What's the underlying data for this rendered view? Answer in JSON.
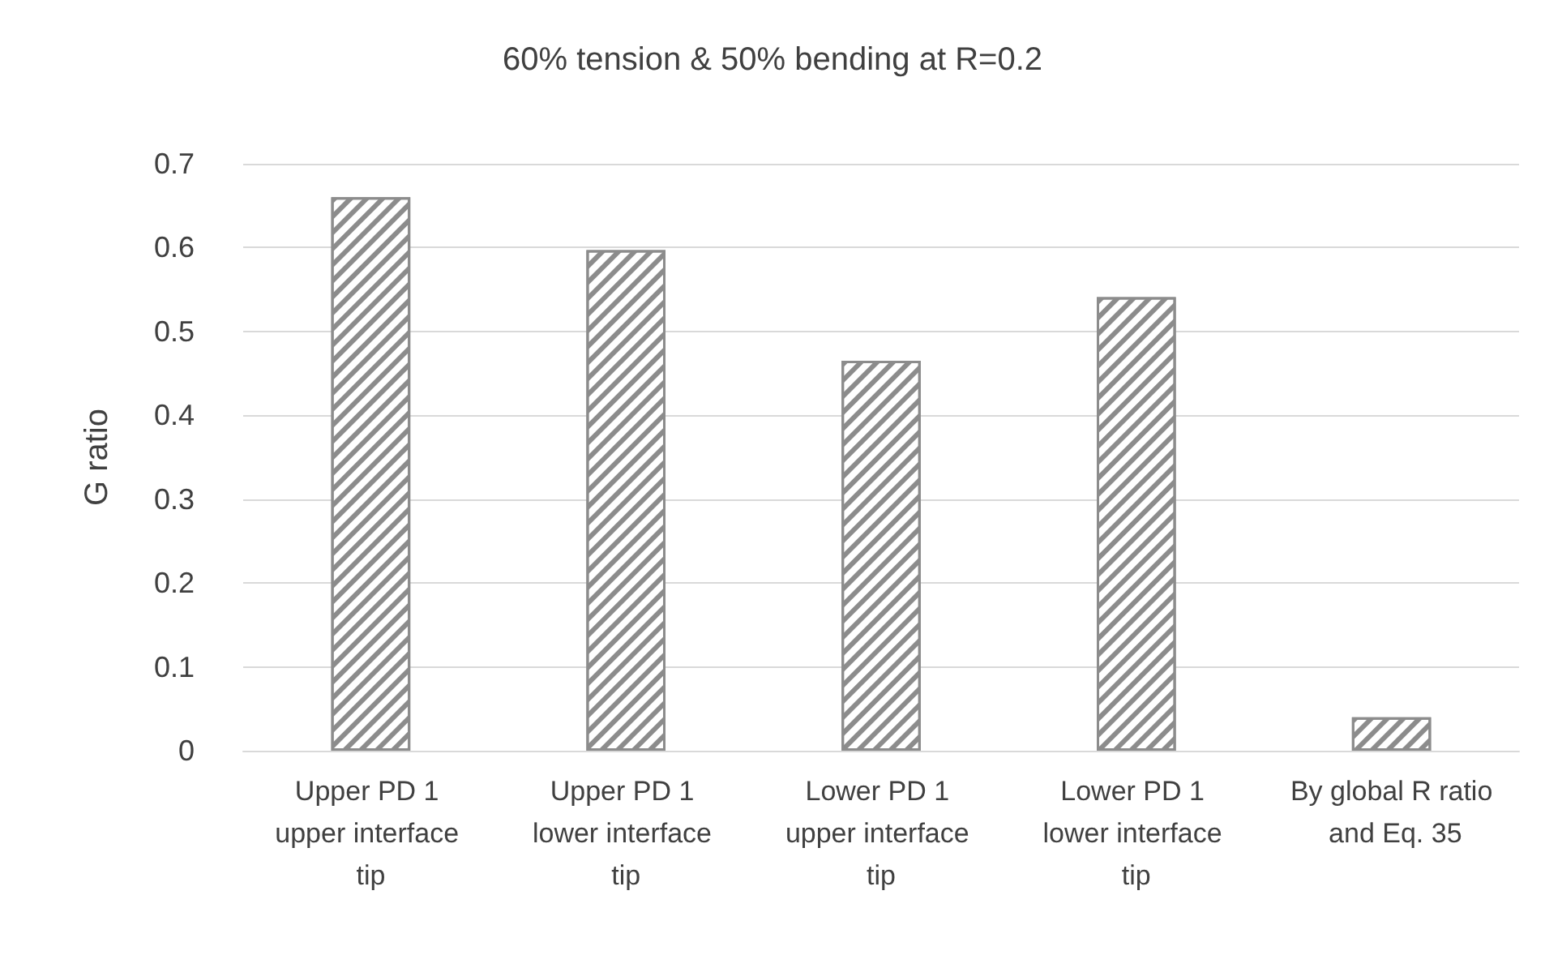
{
  "chart_data": {
    "type": "bar",
    "title": "60% tension & 50% bending at R=0.2",
    "ylabel": "G ratio",
    "categories": [
      "Upper PD 1 upper interface tip",
      "Upper PD 1 lower interface tip",
      "Lower PD 1 upper interface tip",
      "Lower PD 1 lower interface tip",
      "By global R ratio and Eq. 35"
    ],
    "values": [
      0.66,
      0.597,
      0.465,
      0.541,
      0.04
    ],
    "color": "#8c8c8c",
    "ylim": [
      0,
      0.7
    ],
    "yticks": [
      0,
      0.1,
      0.2,
      0.3,
      0.4,
      0.5,
      0.6,
      0.7
    ],
    "grid": "y"
  }
}
